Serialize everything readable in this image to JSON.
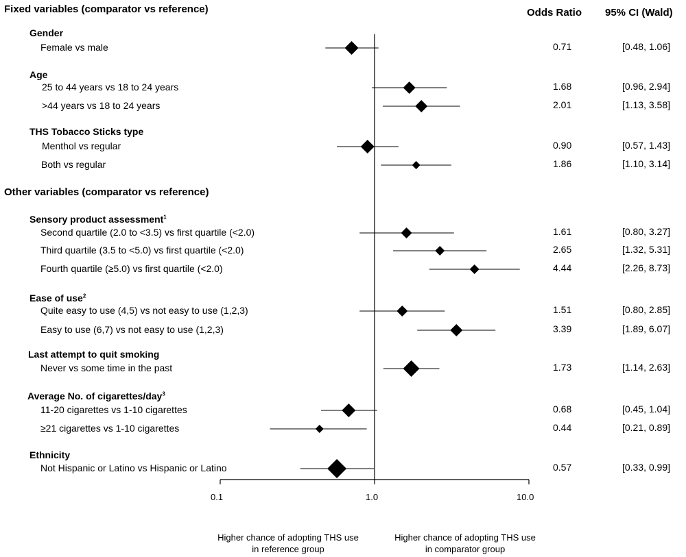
{
  "header": {
    "fixed_section": "Fixed variables (comparator vs reference)",
    "other_section": "Other variables (comparator vs reference)",
    "col_or": "Odds Ratio",
    "col_ci": "95% CI (Wald)"
  },
  "groups": [
    {
      "title": "Gender",
      "sup": ""
    },
    {
      "title": "Age",
      "sup": ""
    },
    {
      "title": "THS Tobacco Sticks type",
      "sup": ""
    },
    {
      "title": "Sensory product assessment",
      "sup": "1"
    },
    {
      "title": "Ease of use",
      "sup": "2"
    },
    {
      "title": "Last attempt to quit smoking",
      "sup": ""
    },
    {
      "title": "Average No. of cigarettes/day",
      "sup": "3"
    },
    {
      "title": "Ethnicity",
      "sup": ""
    }
  ],
  "axis": {
    "ticks": [
      "0.1",
      "1.0",
      "10.0"
    ],
    "left_note_1": "Higher chance of adopting THS use",
    "left_note_2": "in reference group",
    "right_note_1": "Higher chance of adopting THS use",
    "right_note_2": "in comparator group"
  },
  "chart_data": {
    "type": "scatter",
    "x_scale": "log",
    "xlim": [
      0.1,
      10.0
    ],
    "reference_line": 1.0,
    "rows": [
      {
        "label": "Female vs male",
        "or": 0.71,
        "lo": 0.48,
        "hi": 1.06,
        "or_text": "0.71",
        "ci_text": "[0.48, 1.06]"
      },
      {
        "label": "25 to 44 years vs 18 to 24 years",
        "or": 1.68,
        "lo": 0.96,
        "hi": 2.94,
        "or_text": "1.68",
        "ci_text": "[0.96, 2.94]"
      },
      {
        "label": ">44 years vs 18 to 24 years",
        "or": 2.01,
        "lo": 1.13,
        "hi": 3.58,
        "or_text": "2.01",
        "ci_text": "[1.13, 3.58]"
      },
      {
        "label": "Menthol vs regular",
        "or": 0.9,
        "lo": 0.57,
        "hi": 1.43,
        "or_text": "0.90",
        "ci_text": "[0.57, 1.43]"
      },
      {
        "label": "Both vs regular",
        "or": 1.86,
        "lo": 1.1,
        "hi": 3.14,
        "or_text": "1.86",
        "ci_text": "[1.10, 3.14]"
      },
      {
        "label": "Second quartile (2.0 to <3.5) vs first quartile (<2.0)",
        "or": 1.61,
        "lo": 0.8,
        "hi": 3.27,
        "or_text": "1.61",
        "ci_text": "[0.80, 3.27]"
      },
      {
        "label": "Third quartile (3.5 to <5.0) vs first quartile (<2.0)",
        "or": 2.65,
        "lo": 1.32,
        "hi": 5.31,
        "or_text": "2.65",
        "ci_text": "[1.32, 5.31]"
      },
      {
        "label": "Fourth quartile (≥5.0) vs first quartile (<2.0)",
        "or": 4.44,
        "lo": 2.26,
        "hi": 8.73,
        "or_text": "4.44",
        "ci_text": "[2.26, 8.73]"
      },
      {
        "label": "Quite easy to use (4,5) vs not easy to use (1,2,3)",
        "or": 1.51,
        "lo": 0.8,
        "hi": 2.85,
        "or_text": "1.51",
        "ci_text": "[0.80, 2.85]"
      },
      {
        "label": "Easy to use (6,7) vs not easy to use (1,2,3)",
        "or": 3.39,
        "lo": 1.89,
        "hi": 6.07,
        "or_text": "3.39",
        "ci_text": "[1.89, 6.07]"
      },
      {
        "label": "Never vs some time in the past",
        "or": 1.73,
        "lo": 1.14,
        "hi": 2.63,
        "or_text": "1.73",
        "ci_text": "[1.14, 2.63]"
      },
      {
        "label": "11-20 cigarettes vs 1-10 cigarettes",
        "or": 0.68,
        "lo": 0.45,
        "hi": 1.04,
        "or_text": "0.68",
        "ci_text": "[0.45, 1.04]"
      },
      {
        "label": "≥21 cigarettes vs 1-10 cigarettes",
        "or": 0.44,
        "lo": 0.21,
        "hi": 0.89,
        "or_text": "0.44",
        "ci_text": "[0.21, 0.89]"
      },
      {
        "label": "Not Hispanic or Latino vs Hispanic or Latino",
        "or": 0.57,
        "lo": 0.33,
        "hi": 0.99,
        "or_text": "0.57",
        "ci_text": "[0.33, 0.99]"
      }
    ]
  }
}
